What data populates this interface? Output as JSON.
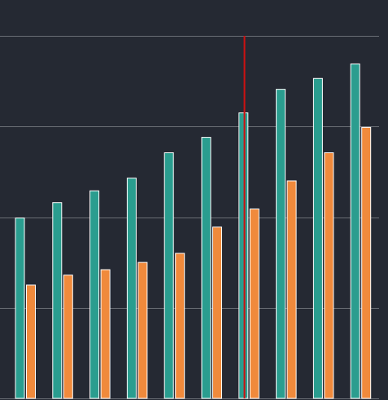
{
  "chart_data": {
    "type": "bar",
    "title": "",
    "xlabel": "",
    "ylabel": "",
    "categories": [
      "",
      "",
      "",
      "",
      "",
      "",
      "",
      "",
      "",
      ""
    ],
    "series": [
      {
        "color": "#2a9d8f",
        "values": [
          1.99,
          2.16,
          2.29,
          2.43,
          2.71,
          2.88,
          3.15,
          3.41,
          3.53,
          3.69
        ]
      },
      {
        "color": "#f08a3c",
        "values": [
          1.25,
          1.36,
          1.42,
          1.5,
          1.6,
          1.89,
          2.09,
          2.4,
          2.71,
          2.99
        ]
      }
    ],
    "ylim": [
      0,
      4
    ],
    "yticks": [
      1,
      2,
      3,
      4
    ],
    "grid": true,
    "marker_line": {
      "index": 6,
      "color": "#cc1111"
    },
    "colors": {
      "background": "#252933",
      "grid": "#6a6e75",
      "bar_outline": "#ffffff"
    }
  }
}
